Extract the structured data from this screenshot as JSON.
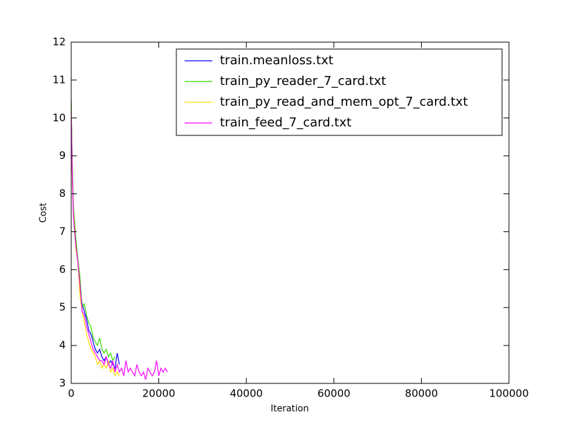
{
  "chart_data": {
    "type": "line",
    "xlabel": "Iteration",
    "ylabel": "Cost",
    "xlim": [
      0,
      100000
    ],
    "ylim": [
      3,
      12
    ],
    "xticks": [
      0,
      20000,
      40000,
      60000,
      80000,
      100000
    ],
    "yticks": [
      3,
      4,
      5,
      6,
      7,
      8,
      9,
      10,
      11,
      12
    ],
    "legend": "upper right",
    "grid": false,
    "series": [
      {
        "name": "train.meanloss.txt",
        "color": "#0000ff",
        "x": [
          0,
          200,
          500,
          1000,
          1500,
          2000,
          2500,
          3000,
          3500,
          4000,
          4500,
          5000,
          5500,
          6000,
          6500,
          7000,
          7500,
          8000,
          8500,
          9000,
          9500,
          10000,
          10500,
          11000
        ],
        "values": [
          10.4,
          8.8,
          7.6,
          6.8,
          6.2,
          5.5,
          5.1,
          4.9,
          4.7,
          4.4,
          4.3,
          4.1,
          3.9,
          3.8,
          3.9,
          3.7,
          3.6,
          3.7,
          3.5,
          3.6,
          3.5,
          3.4,
          3.8,
          3.5
        ]
      },
      {
        "name": "train_py_reader_7_card.txt",
        "color": "#33dd00",
        "x": [
          0,
          200,
          500,
          1000,
          1500,
          2000,
          2500,
          3000,
          3500,
          4000,
          4500,
          5000,
          5500,
          6000,
          6500,
          7000,
          7500,
          8000,
          8500,
          9000,
          9500,
          10000
        ],
        "values": [
          10.5,
          9.0,
          7.7,
          6.9,
          6.3,
          5.8,
          5.0,
          5.1,
          4.8,
          4.6,
          4.5,
          4.2,
          4.1,
          4.0,
          4.2,
          3.9,
          3.8,
          3.9,
          3.7,
          3.8,
          3.6,
          3.7
        ]
      },
      {
        "name": "train_py_read_and_mem_opt_7_card.txt",
        "color": "#ffdd00",
        "x": [
          0,
          200,
          500,
          1000,
          1500,
          2000,
          2500,
          3000,
          3500,
          4000,
          4500,
          5000,
          5500,
          6000,
          6500,
          7000,
          7500,
          8000,
          8500,
          9000,
          9500,
          10000,
          10500,
          11000
        ],
        "values": [
          10.3,
          8.6,
          7.5,
          6.6,
          6.2,
          5.3,
          4.9,
          4.6,
          4.3,
          4.1,
          3.9,
          3.8,
          3.7,
          3.5,
          3.6,
          3.4,
          3.5,
          3.4,
          3.6,
          3.3,
          3.4,
          3.2,
          3.3,
          3.2
        ]
      },
      {
        "name": "train_feed_7_card.txt",
        "color": "#ff00ff",
        "x": [
          0,
          200,
          500,
          1000,
          1500,
          2000,
          2500,
          3000,
          3500,
          4000,
          4500,
          5000,
          5500,
          6000,
          6500,
          7000,
          7500,
          8000,
          8500,
          9000,
          9500,
          10000,
          10500,
          11000,
          11500,
          12000,
          12500,
          13000,
          13500,
          14000,
          14500,
          15000,
          15500,
          16000,
          16500,
          17000,
          17500,
          18000,
          18500,
          19000,
          19500,
          20000,
          20500,
          21000,
          21500,
          22000
        ],
        "values": [
          10.2,
          8.7,
          7.4,
          6.7,
          6.2,
          5.6,
          4.9,
          4.8,
          4.5,
          4.3,
          4.1,
          3.9,
          3.8,
          3.7,
          3.6,
          3.6,
          3.5,
          3.7,
          3.5,
          3.4,
          3.6,
          3.3,
          3.5,
          3.3,
          3.4,
          3.2,
          3.6,
          3.3,
          3.4,
          3.3,
          3.2,
          3.5,
          3.3,
          3.2,
          3.3,
          3.1,
          3.4,
          3.3,
          3.2,
          3.3,
          3.6,
          3.2,
          3.4,
          3.3,
          3.4,
          3.3
        ]
      }
    ]
  }
}
